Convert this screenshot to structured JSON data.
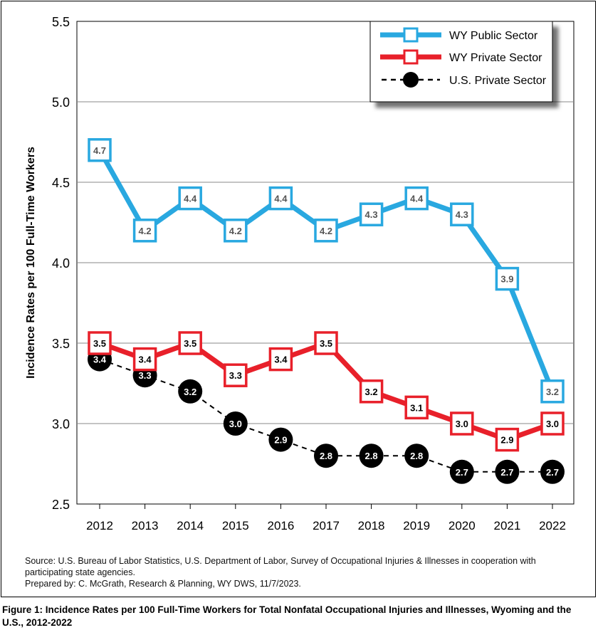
{
  "chart_data": {
    "type": "line",
    "title": "",
    "xlabel": "",
    "ylabel": "Incidence Rates per 100 Full-Time Workers",
    "ylim": [
      2.5,
      5.5
    ],
    "yticks": [
      "2.5",
      "3.0",
      "3.5",
      "4.0",
      "4.5",
      "5.0",
      "5.5"
    ],
    "categories": [
      "2012",
      "2013",
      "2014",
      "2015",
      "2016",
      "2017",
      "2018",
      "2019",
      "2020",
      "2021",
      "2022"
    ],
    "grid": "horizontal",
    "legend_position": "top-right",
    "series": [
      {
        "name": "WY Public Sector",
        "color": "#29a8e0",
        "marker": "open-square",
        "line": "solid",
        "values": [
          4.7,
          4.2,
          4.4,
          4.2,
          4.4,
          4.2,
          4.3,
          4.4,
          4.3,
          3.9,
          3.2
        ],
        "labels": [
          "4.7",
          "4.2",
          "4.4",
          "4.2",
          "4.4",
          "4.2",
          "4.3",
          "4.4",
          "4.3",
          "3.9",
          "3.2"
        ]
      },
      {
        "name": "WY Private Sector",
        "color": "#e8202a",
        "marker": "open-square",
        "line": "solid",
        "values": [
          3.5,
          3.4,
          3.5,
          3.3,
          3.4,
          3.5,
          3.2,
          3.1,
          3.0,
          2.9,
          3.0
        ],
        "labels": [
          "3.5",
          "3.4",
          "3.5",
          "3.3",
          "3.4",
          "3.5",
          "3.2",
          "3.1",
          "3.0",
          "2.9",
          "3.0"
        ]
      },
      {
        "name": "U.S. Private Sector",
        "color": "#000000",
        "marker": "filled-circle",
        "line": "dashed",
        "values": [
          3.4,
          3.3,
          3.2,
          3.0,
          2.9,
          2.8,
          2.8,
          2.8,
          2.7,
          2.7,
          2.7
        ],
        "labels": [
          "3.4",
          "3.3",
          "3.2",
          "3.0",
          "2.9",
          "2.8",
          "2.8",
          "2.8",
          "2.7",
          "2.7",
          "2.7"
        ]
      }
    ]
  },
  "source": {
    "line1": "Source: U.S. Bureau of Labor Statistics, U.S. Department of Labor, Survey of Occupational Injuries & Illnesses in cooperation with",
    "line2": "participating state agencies.",
    "line3": "Prepared by: C. McGrath, Research & Planning, WY DWS, 11/7/2023."
  },
  "caption": "Figure 1:  Incidence Rates per 100 Full-Time Workers for Total Nonfatal Occupational Injuries and Illnesses, Wyoming and the U.S., 2012-2022"
}
